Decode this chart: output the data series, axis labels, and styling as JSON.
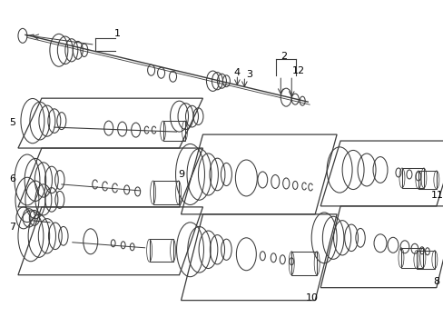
{
  "background_color": "#ffffff",
  "line_color": "#3a3a3a",
  "label_color": "#000000",
  "fig_width": 4.89,
  "fig_height": 3.6,
  "dpi": 100,
  "skew": 0.32,
  "boxes": [
    {
      "label": "5",
      "col": 0,
      "row": 0,
      "label_side": "left"
    },
    {
      "label": "6",
      "col": 0,
      "row": 1,
      "label_side": "left"
    },
    {
      "label": "7",
      "col": 0,
      "row": 2,
      "label_side": "left"
    },
    {
      "label": "9",
      "col": 1,
      "row": 0,
      "label_side": "left"
    },
    {
      "label": "10",
      "col": 1,
      "row": 1,
      "label_side": "bottom"
    },
    {
      "label": "11",
      "col": 2,
      "row": 0,
      "label_side": "right"
    },
    {
      "label": "8",
      "col": 2,
      "row": 1,
      "label_side": "right"
    }
  ]
}
